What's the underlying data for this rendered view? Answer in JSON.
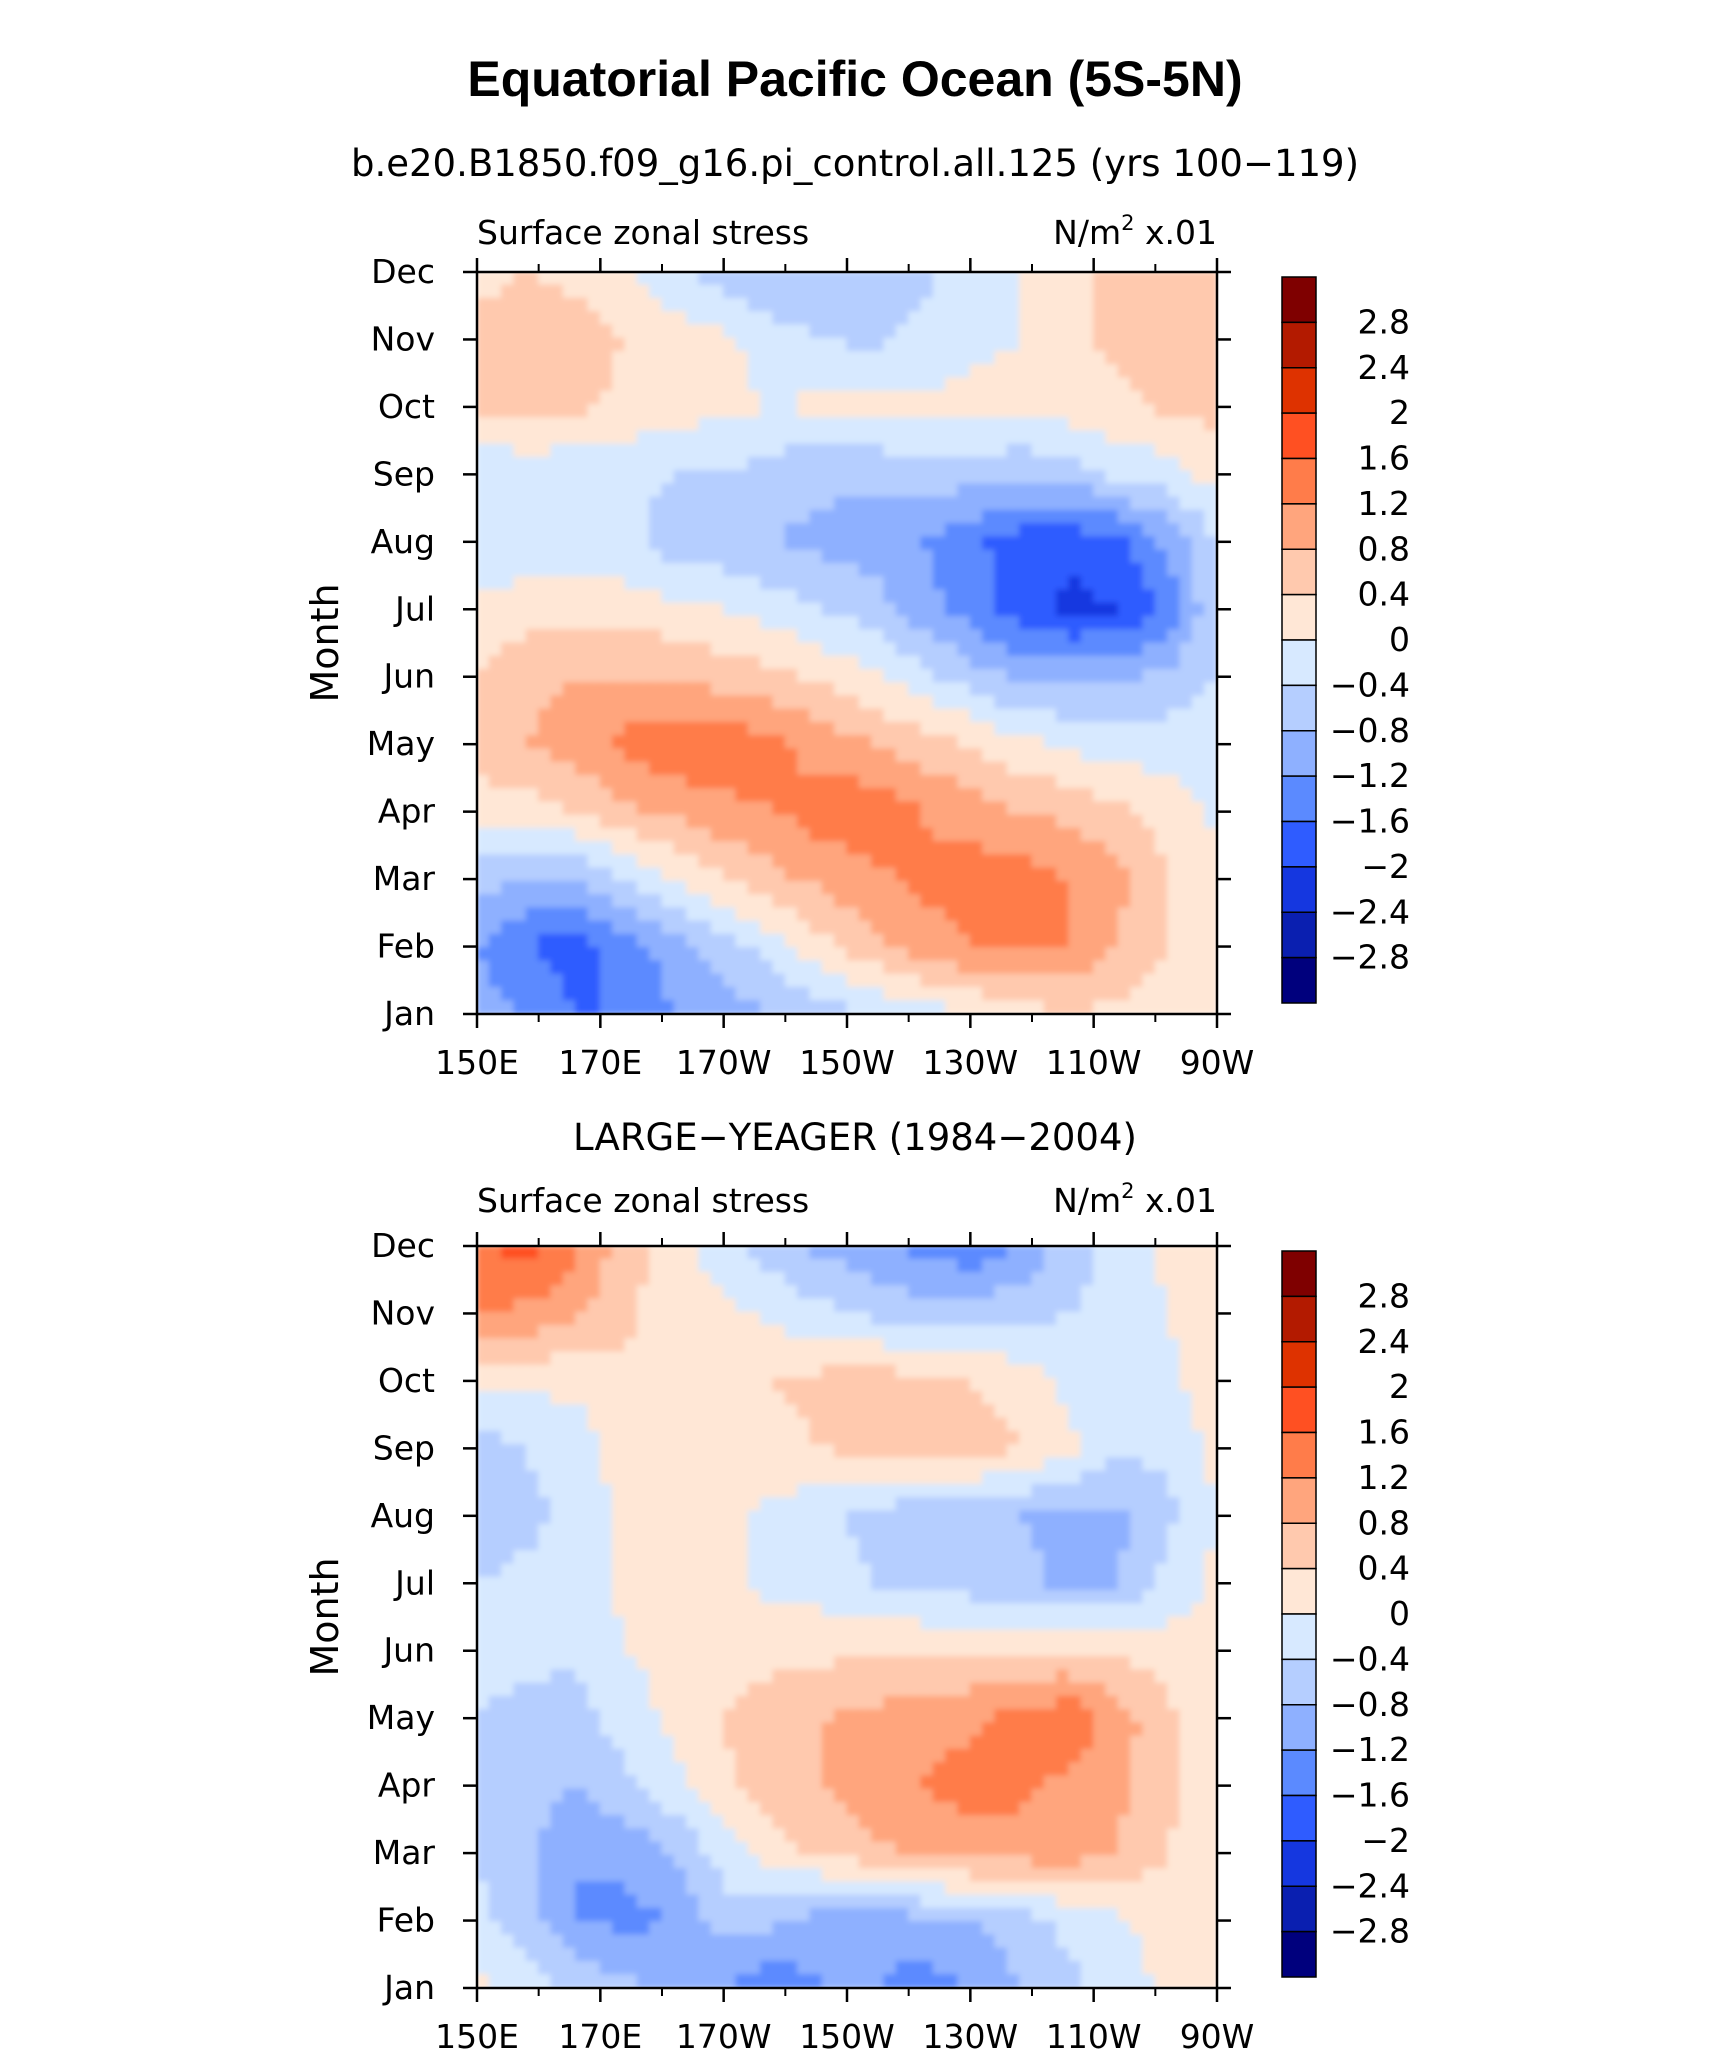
{
  "figure": {
    "title": "Equatorial Pacific Ocean (5S-5N)"
  },
  "colorbar": {
    "levels": [
      "2.8",
      "2.4",
      "2",
      "1.6",
      "1.2",
      "0.8",
      "0.4",
      "0",
      "−0.4",
      "−0.8",
      "−1.2",
      "−1.6",
      "−2",
      "−2.4",
      "−2.8"
    ],
    "colors": [
      "#7f0000",
      "#b31a00",
      "#de3200",
      "#ff5022",
      "#ff7c4a",
      "#ffa57d",
      "#ffc9ae",
      "#ffe7d6",
      "#d7e9ff",
      "#b5ceff",
      "#8eb0ff",
      "#5b8aff",
      "#2f5cff",
      "#1537e0",
      "#0a1fb0",
      "#00007d"
    ]
  },
  "chart_data": [
    {
      "type": "heatmap",
      "subtitle": "b.e20.B1850.f09_g16.pi_control.all.125 (yrs 100−119)",
      "left_label": "Surface zonal stress",
      "right_label_base": "N/m",
      "right_label_exp": "2",
      "right_label_scale": "x.01",
      "ylabel": "Month",
      "x_ticks": [
        "150E",
        "170E",
        "170W",
        "150W",
        "130W",
        "110W",
        "90W"
      ],
      "y_ticks": [
        "Jan",
        "Feb",
        "Mar",
        "Apr",
        "May",
        "Jun",
        "Jul",
        "Aug",
        "Sep",
        "Oct",
        "Nov",
        "Dec"
      ],
      "x_range": [
        150,
        270
      ],
      "y_range": [
        1,
        12
      ],
      "field": [
        [
          -1.0,
          -1.2,
          -1.6,
          -1.6,
          -1.2,
          -1.0,
          -0.8,
          -0.6,
          -0.4,
          -0.2,
          0.0,
          0.2,
          0.4,
          0.3,
          0.2,
          0.1
        ],
        [
          -1.2,
          -1.6,
          -1.8,
          -1.4,
          -1.0,
          -0.6,
          -0.2,
          0.3,
          0.7,
          1.0,
          1.2,
          1.3,
          1.2,
          0.8,
          0.4,
          0.2
        ],
        [
          -0.6,
          -0.8,
          -0.8,
          -0.4,
          0.0,
          0.4,
          0.7,
          0.9,
          1.1,
          1.3,
          1.4,
          1.4,
          1.2,
          0.9,
          0.4,
          0.1
        ],
        [
          0.2,
          0.2,
          0.4,
          0.7,
          0.9,
          1.1,
          1.2,
          1.4,
          1.5,
          1.2,
          1.0,
          0.8,
          0.7,
          0.5,
          0.2,
          -0.1
        ],
        [
          0.6,
          0.8,
          1.0,
          1.3,
          1.5,
          1.5,
          1.3,
          1.0,
          0.8,
          0.6,
          0.4,
          0.1,
          -0.1,
          -0.2,
          -0.2,
          -0.2
        ],
        [
          0.4,
          0.7,
          0.8,
          0.8,
          0.8,
          0.6,
          0.5,
          0.3,
          0.1,
          -0.3,
          -0.6,
          -0.9,
          -0.9,
          -0.9,
          -0.7,
          -0.4
        ],
        [
          0.1,
          0.2,
          0.3,
          0.2,
          0.1,
          0.0,
          -0.2,
          -0.4,
          -0.6,
          -1.0,
          -1.4,
          -1.8,
          -2.1,
          -2.0,
          -1.5,
          -0.4
        ],
        [
          -0.3,
          -0.3,
          -0.3,
          -0.3,
          -0.6,
          -0.7,
          -0.8,
          -0.9,
          -1.0,
          -1.2,
          -1.5,
          -1.8,
          -1.9,
          -1.7,
          -1.1,
          -0.4
        ],
        [
          -0.4,
          -0.3,
          -0.3,
          -0.3,
          -0.4,
          -0.4,
          -0.6,
          -0.7,
          -0.7,
          -0.6,
          -0.6,
          -0.7,
          -0.6,
          -0.3,
          -0.2,
          0.2
        ],
        [
          0.5,
          0.6,
          0.5,
          0.3,
          0.2,
          0.1,
          0.0,
          0.1,
          0.1,
          0.1,
          0.1,
          0.1,
          0.2,
          0.3,
          0.5,
          0.5
        ],
        [
          0.5,
          0.6,
          0.6,
          0.4,
          0.2,
          0.1,
          -0.2,
          -0.4,
          -0.5,
          -0.3,
          -0.1,
          0.0,
          0.3,
          0.5,
          0.6,
          0.5
        ],
        [
          0.3,
          0.4,
          0.3,
          0.1,
          -0.3,
          -0.6,
          -0.8,
          -0.8,
          -0.7,
          -0.5,
          -0.2,
          0.0,
          0.3,
          0.5,
          0.6,
          0.4
        ]
      ]
    },
    {
      "type": "heatmap",
      "subtitle": "LARGE−YEAGER (1984−2004)",
      "left_label": "Surface zonal stress",
      "right_label_base": "N/m",
      "right_label_exp": "2",
      "right_label_scale": "x.01",
      "ylabel": "Month",
      "x_ticks": [
        "150E",
        "170E",
        "170W",
        "150W",
        "130W",
        "110W",
        "90W"
      ],
      "y_ticks": [
        "Jan",
        "Feb",
        "Mar",
        "Apr",
        "May",
        "Jun",
        "Jul",
        "Aug",
        "Sep",
        "Oct",
        "Nov",
        "Dec"
      ],
      "x_range": [
        150,
        270
      ],
      "y_range": [
        1,
        12
      ],
      "field": [
        [
          0.1,
          -0.2,
          -0.5,
          -0.7,
          -0.9,
          -1.2,
          -1.5,
          -1.2,
          -1.1,
          -1.4,
          -1.2,
          -0.8,
          -0.5,
          -0.2,
          0.1,
          0.2
        ],
        [
          -0.3,
          -0.6,
          -1.2,
          -1.3,
          -1.2,
          -0.6,
          -0.7,
          -1.0,
          -1.2,
          -0.9,
          -0.8,
          -0.6,
          -0.3,
          -0.1,
          0.2,
          0.1
        ],
        [
          -0.4,
          -0.7,
          -1.2,
          -1.1,
          -0.8,
          -0.2,
          0.2,
          0.5,
          0.7,
          0.9,
          1.0,
          1.0,
          1.0,
          0.8,
          0.4,
          0.1
        ],
        [
          -0.4,
          -0.6,
          -0.8,
          -0.5,
          -0.1,
          0.3,
          0.6,
          0.8,
          1.0,
          1.2,
          1.4,
          1.3,
          1.1,
          0.9,
          0.5,
          0.1
        ],
        [
          -0.4,
          -0.5,
          -0.6,
          -0.2,
          0.1,
          0.4,
          0.7,
          0.8,
          0.9,
          1.0,
          1.1,
          1.3,
          1.5,
          1.0,
          0.5,
          0.1
        ],
        [
          -0.3,
          -0.3,
          -0.3,
          0.0,
          0.1,
          0.2,
          0.2,
          0.3,
          0.3,
          0.4,
          0.4,
          0.4,
          0.4,
          0.3,
          0.2,
          0.1
        ],
        [
          -0.4,
          -0.3,
          -0.3,
          0.1,
          0.2,
          0.1,
          -0.1,
          -0.2,
          -0.4,
          -0.6,
          -0.6,
          -0.7,
          -0.9,
          -0.8,
          -0.3,
          0.1
        ],
        [
          -0.8,
          -0.5,
          -0.3,
          0.1,
          0.2,
          0.1,
          -0.1,
          -0.3,
          -0.5,
          -0.7,
          -0.8,
          -0.8,
          -0.9,
          -0.9,
          -0.5,
          0.0
        ],
        [
          -0.6,
          -0.4,
          -0.2,
          0.2,
          0.3,
          0.2,
          0.3,
          0.4,
          0.6,
          0.6,
          0.7,
          0.4,
          0.1,
          -0.3,
          -0.3,
          0.1
        ],
        [
          0.1,
          0.1,
          0.1,
          0.3,
          0.3,
          0.2,
          0.4,
          0.5,
          0.6,
          0.5,
          0.4,
          0.2,
          -0.1,
          -0.2,
          -0.1,
          0.3
        ],
        [
          1.2,
          1.1,
          0.9,
          0.5,
          0.2,
          0.1,
          -0.1,
          -0.3,
          -0.5,
          -0.6,
          -0.6,
          -0.5,
          -0.4,
          -0.3,
          0.0,
          0.2
        ],
        [
          1.5,
          1.8,
          1.3,
          0.6,
          0.1,
          -0.2,
          -0.6,
          -0.9,
          -1.1,
          -1.3,
          -1.5,
          -1.2,
          -0.6,
          -0.2,
          0.1,
          0.2
        ]
      ]
    }
  ]
}
